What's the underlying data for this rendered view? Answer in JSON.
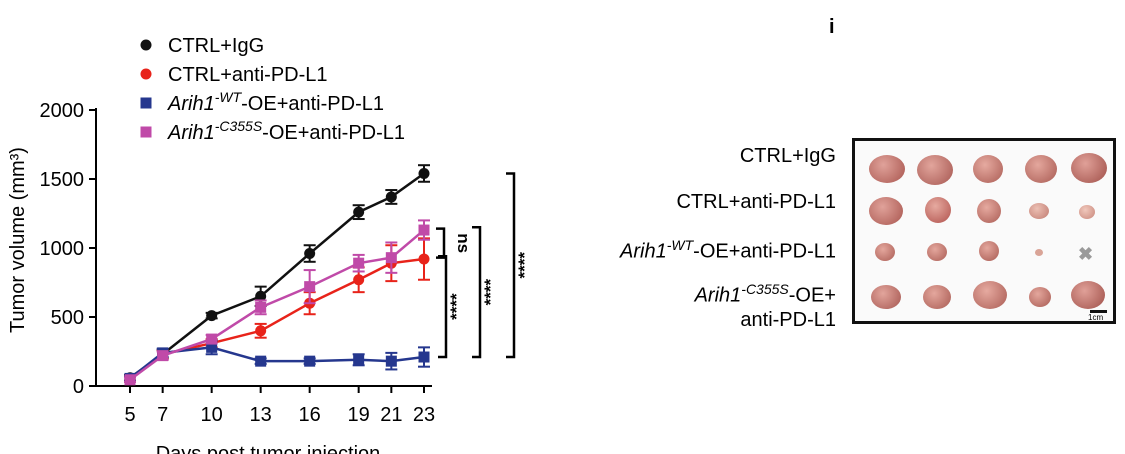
{
  "chart_data": {
    "type": "line",
    "x": [
      5,
      7,
      10,
      13,
      16,
      19,
      21,
      23
    ],
    "xticks": [
      "5",
      "7",
      "10",
      "13",
      "16",
      "19",
      "21",
      "23"
    ],
    "xlabel": "Days post tumor injection",
    "ylabel": "Tumor volume (mm³)",
    "yticks": [
      "0",
      "500",
      "1000",
      "1500",
      "2000"
    ],
    "ylim": [
      0,
      2000
    ],
    "xlim": [
      5,
      23
    ],
    "legend_position": "top-left",
    "series": [
      {
        "name": "CTRL+IgG",
        "marker": "circle",
        "color": "#111111",
        "values": [
          60,
          230,
          510,
          650,
          960,
          1260,
          1370,
          1540
        ],
        "errors": [
          20,
          30,
          20,
          70,
          60,
          50,
          50,
          60
        ]
      },
      {
        "name": "CTRL+anti-PD-L1",
        "marker": "circle",
        "color": "#e8231a",
        "values": [
          50,
          230,
          310,
          400,
          600,
          770,
          890,
          920
        ],
        "errors": [
          20,
          30,
          30,
          50,
          80,
          90,
          130,
          150
        ]
      },
      {
        "name": "Arih1-WT-OE+anti-PD-L1",
        "marker": "square",
        "color": "#25378e",
        "values": [
          55,
          240,
          280,
          180,
          180,
          190,
          180,
          210
        ],
        "errors": [
          20,
          30,
          50,
          20,
          20,
          40,
          60,
          70
        ]
      },
      {
        "name": "Arih1-C355S-OE+anti-PD-L1",
        "marker": "square",
        "color": "#c04aa8",
        "values": [
          45,
          220,
          340,
          570,
          720,
          890,
          930,
          1130
        ],
        "errors": [
          15,
          30,
          30,
          50,
          120,
          60,
          110,
          70
        ]
      }
    ],
    "significance": [
      {
        "label": "ns",
        "from_series": 3,
        "to_series": 1
      },
      {
        "label": "****",
        "from_series": 1,
        "to_series": 2
      },
      {
        "label": "****",
        "from_series": 3,
        "to_series": 2
      },
      {
        "label": "****",
        "from_series": 0,
        "to_series": 2
      }
    ]
  },
  "legend": {
    "items": [
      {
        "prefix": "CTRL+IgG",
        "italic": "",
        "sup": "",
        "suffix": ""
      },
      {
        "prefix": "CTRL+anti-PD-L1",
        "italic": "",
        "sup": "",
        "suffix": ""
      },
      {
        "prefix": "",
        "italic": "Arih1",
        "sup": "-WT",
        "suffix": "-OE+anti-PD-L1"
      },
      {
        "prefix": "",
        "italic": "Arih1",
        "sup": "-C355S",
        "suffix": "-OE+anti-PD-L1"
      }
    ]
  },
  "photo_panel": {
    "panel_letter": "i",
    "row_labels": [
      {
        "italic": "",
        "sup": "",
        "text": "CTRL+IgG"
      },
      {
        "italic": "",
        "sup": "",
        "text": "CTRL+anti-PD-L1"
      },
      {
        "italic": "Arih1",
        "sup": "-WT",
        "text": "-OE+anti-PD-L1"
      },
      {
        "italic": "Arih1",
        "sup": "-C355S",
        "text": "-OE+"
      }
    ],
    "row_label_extra": "anti-PD-L1",
    "scale_label": "1cm",
    "missing_marker": "✖"
  }
}
